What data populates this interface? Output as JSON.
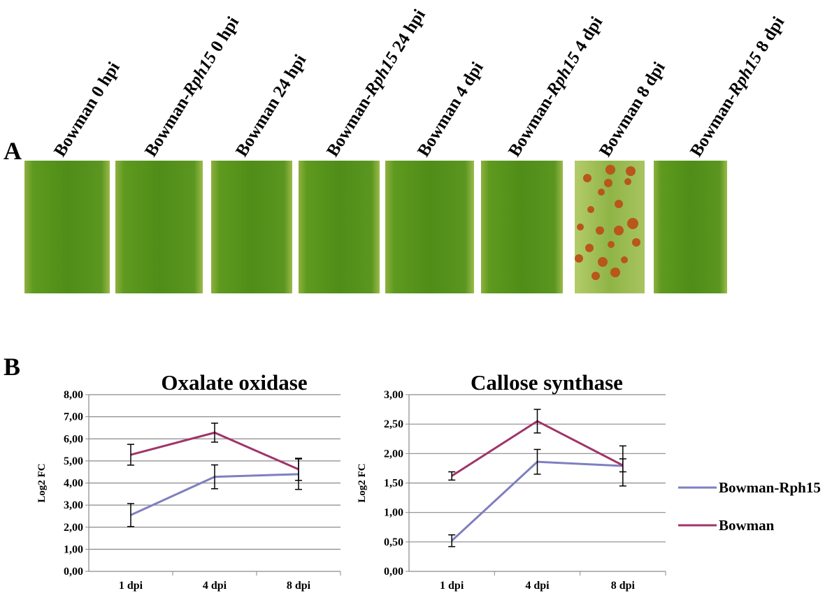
{
  "panel_a": {
    "label": "A",
    "leaves": [
      {
        "label": [
          "Bowman 0 hpi"
        ],
        "italic": [
          false
        ]
      },
      {
        "label": [
          "Bowman-",
          "Rph15",
          " 0 hpi"
        ],
        "italic": [
          false,
          true,
          false
        ]
      },
      {
        "label": [
          "Bowman 24 hpi"
        ],
        "italic": [
          false
        ]
      },
      {
        "label": [
          "Bowman-",
          "Rph15",
          " 24 hpi"
        ],
        "italic": [
          false,
          true,
          false
        ]
      },
      {
        "label": [
          "Bowman 4 dpi"
        ],
        "italic": [
          false
        ]
      },
      {
        "label": [
          "Bowman-",
          "Rph15",
          " 4 dpi"
        ],
        "italic": [
          false,
          true,
          false
        ]
      },
      {
        "label": [
          "Bowman 8 dpi"
        ],
        "italic": [
          false
        ]
      },
      {
        "label": [
          "Bowman-",
          "Rph15",
          " 8 dpi"
        ],
        "italic": [
          false,
          true,
          false
        ]
      }
    ]
  },
  "panel_b": {
    "label": "B"
  },
  "chart_data": [
    {
      "type": "line",
      "title": "Oxalate oxidase",
      "y_label": "Log2 FC",
      "categories": [
        "1 dpi",
        "4 dpi",
        "8 dpi"
      ],
      "ylim": [
        0,
        8
      ],
      "yticks": [
        {
          "value": 0,
          "label": "0,00"
        },
        {
          "value": 1,
          "label": "1,00"
        },
        {
          "value": 2,
          "label": "2,00"
        },
        {
          "value": 3,
          "label": "3,00"
        },
        {
          "value": 4,
          "label": "4,00"
        },
        {
          "value": 5,
          "label": "5,00"
        },
        {
          "value": 6,
          "label": "6,00"
        },
        {
          "value": 7,
          "label": "7,00"
        },
        {
          "value": 8,
          "label": "8,00"
        }
      ],
      "grid": true,
      "series": [
        {
          "name": "Bowman-Rph15",
          "color": "#7f7fc0",
          "values": [
            2.55,
            4.28,
            4.4
          ],
          "errors": [
            0.52,
            0.54,
            0.69
          ]
        },
        {
          "name": "Bowman",
          "color": "#a0346a",
          "values": [
            5.28,
            6.28,
            4.62
          ],
          "errors": [
            0.47,
            0.43,
            0.5
          ]
        }
      ]
    },
    {
      "type": "line",
      "title": "Callose synthase",
      "y_label": "Log2 FC",
      "categories": [
        "1 dpi",
        "4 dpi",
        "8 dpi"
      ],
      "ylim": [
        0,
        3
      ],
      "yticks": [
        {
          "value": 0,
          "label": "0,00"
        },
        {
          "value": 0.5,
          "label": "0,50"
        },
        {
          "value": 1,
          "label": "1,00"
        },
        {
          "value": 1.5,
          "label": "1,50"
        },
        {
          "value": 2,
          "label": "2,00"
        },
        {
          "value": 2.5,
          "label": "2,50"
        },
        {
          "value": 3,
          "label": "3,00"
        }
      ],
      "grid": true,
      "legend": "right",
      "series": [
        {
          "name": "Bowman-Rph15",
          "color": "#7f7fc0",
          "values": [
            0.52,
            1.86,
            1.79
          ],
          "errors": [
            0.1,
            0.21,
            0.34
          ]
        },
        {
          "name": "Bowman",
          "color": "#a0346a",
          "values": [
            1.62,
            2.55,
            1.8
          ],
          "errors": [
            0.07,
            0.2,
            0.11
          ]
        }
      ]
    }
  ]
}
